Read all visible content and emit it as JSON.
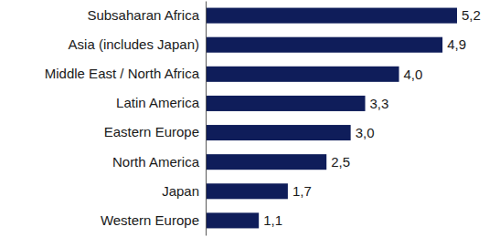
{
  "chart_data": {
    "type": "bar",
    "orientation": "horizontal",
    "categories": [
      "Subsaharan Africa",
      "Asia (includes Japan)",
      "Middle East / North Africa",
      "Latin America",
      "Eastern Europe",
      "North America",
      "Japan",
      "Western Europe"
    ],
    "values": [
      5.2,
      4.9,
      4.0,
      3.3,
      3.0,
      2.5,
      1.7,
      1.1
    ],
    "value_labels": [
      "5,2",
      "4,9",
      "4,0",
      "3,3",
      "3,0",
      "2,5",
      "1,7",
      "1,1"
    ],
    "data_labels": true,
    "tick_labels": "y",
    "color": "#0f1d5a"
  }
}
